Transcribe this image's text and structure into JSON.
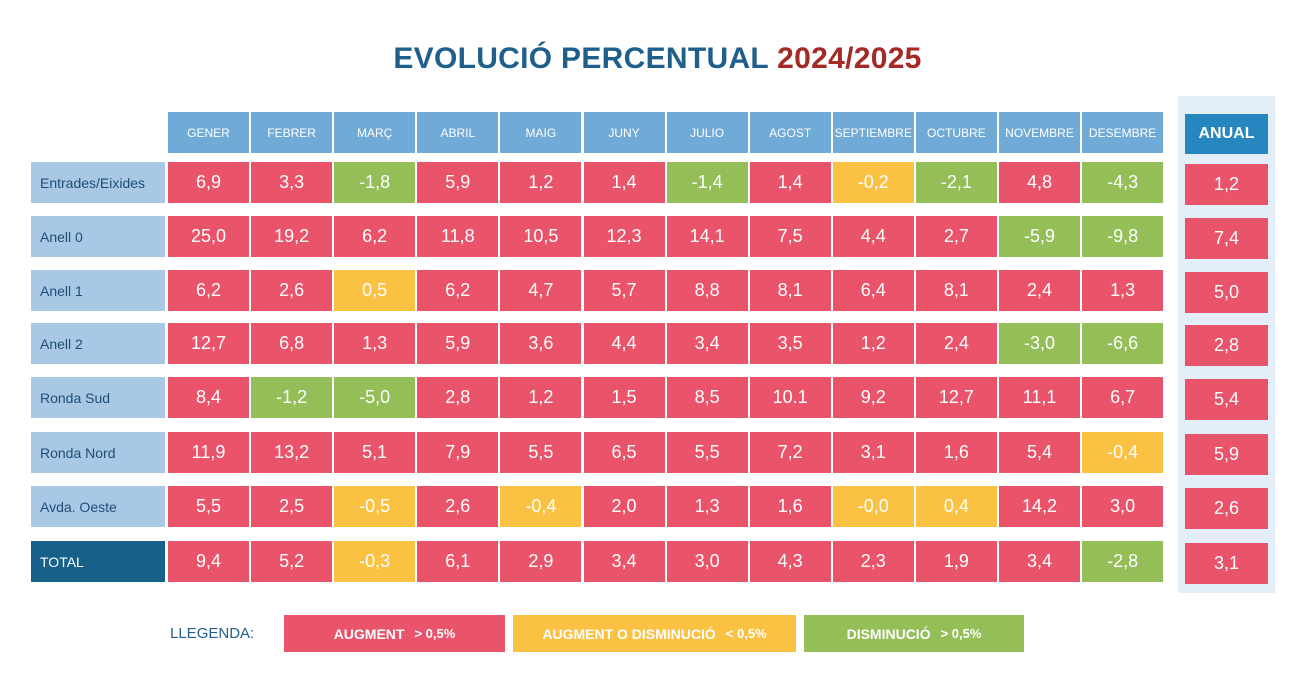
{
  "title": {
    "main": "EVOLUCIÓ PERCENTUAL",
    "year": "2024/2025"
  },
  "colors": {
    "up": "#EA546A",
    "flat": "#FBC143",
    "down": "#93BE58",
    "header": "#70AAD6",
    "row_label": "#A9C8E5",
    "total": "#17608A",
    "anual_header": "#2687BF"
  },
  "chart_data": {
    "type": "table",
    "title": "EVOLUCIÓ PERCENTUAL 2024/2025",
    "columns": [
      "GENER",
      "FEBRER",
      "MARÇ",
      "ABRIL",
      "MAIG",
      "JUNY",
      "JULIO",
      "AGOST",
      "SEPTIEMBRE",
      "OCTUBRE",
      "NOVEMBRE",
      "DESEMBRE"
    ],
    "annual_header": "ANUAL",
    "rows": [
      {
        "label": "Entrades/Eixides",
        "values": [
          "6,9",
          "3,3",
          "-1,8",
          "5,9",
          "1,2",
          "1,4",
          "-1,4",
          "1,4",
          "-0,2",
          "-2,1",
          "4,8",
          "-4,3"
        ],
        "status": [
          "up",
          "up",
          "down",
          "up",
          "up",
          "up",
          "down",
          "up",
          "flat",
          "down",
          "up",
          "down"
        ],
        "annual": "1,2",
        "annual_status": "up"
      },
      {
        "label": "Anell 0",
        "values": [
          "25,0",
          "19,2",
          "6,2",
          "11,8",
          "10,5",
          "12,3",
          "14,1",
          "7,5",
          "4,4",
          "2,7",
          "-5,9",
          "-9,8"
        ],
        "status": [
          "up",
          "up",
          "up",
          "up",
          "up",
          "up",
          "up",
          "up",
          "up",
          "up",
          "down",
          "down"
        ],
        "annual": "7,4",
        "annual_status": "up"
      },
      {
        "label": "Anell 1",
        "values": [
          "6,2",
          "2,6",
          "0,5",
          "6,2",
          "4,7",
          "5,7",
          "8,8",
          "8,1",
          "6,4",
          "8,1",
          "2,4",
          "1,3"
        ],
        "status": [
          "up",
          "up",
          "flat",
          "up",
          "up",
          "up",
          "up",
          "up",
          "up",
          "up",
          "up",
          "up"
        ],
        "annual": "5,0",
        "annual_status": "up"
      },
      {
        "label": "Anell 2",
        "values": [
          "12,7",
          "6,8",
          "1,3",
          "5,9",
          "3,6",
          "4,4",
          "3,4",
          "3,5",
          "1,2",
          "2,4",
          "-3,0",
          "-6,6"
        ],
        "status": [
          "up",
          "up",
          "up",
          "up",
          "up",
          "up",
          "up",
          "up",
          "up",
          "up",
          "down",
          "down"
        ],
        "annual": "2,8",
        "annual_status": "up"
      },
      {
        "label": "Ronda Sud",
        "values": [
          "8,4",
          "-1,2",
          "-5,0",
          "2,8",
          "1,2",
          "1,5",
          "8,5",
          "10.1",
          "9,2",
          "12,7",
          "11,1",
          "6,7"
        ],
        "status": [
          "up",
          "down",
          "down",
          "up",
          "up",
          "up",
          "up",
          "up",
          "up",
          "up",
          "up",
          "up"
        ],
        "annual": "5,4",
        "annual_status": "up"
      },
      {
        "label": "Ronda Nord",
        "values": [
          "11,9",
          "13,2",
          "5,1",
          "7,9",
          "5,5",
          "6,5",
          "5,5",
          "7,2",
          "3,1",
          "1,6",
          "5,4",
          "-0,4"
        ],
        "status": [
          "up",
          "up",
          "up",
          "up",
          "up",
          "up",
          "up",
          "up",
          "up",
          "up",
          "up",
          "flat"
        ],
        "annual": "5,9",
        "annual_status": "up"
      },
      {
        "label": "Avda. Oeste",
        "values": [
          "5,5",
          "2,5",
          "-0,5",
          "2,6",
          "-0,4",
          "2,0",
          "1,3",
          "1,6",
          "-0,0",
          "0,4",
          "14,2",
          "3,0"
        ],
        "status": [
          "up",
          "up",
          "flat",
          "up",
          "flat",
          "up",
          "up",
          "up",
          "flat",
          "flat",
          "up",
          "up"
        ],
        "annual": "2,6",
        "annual_status": "up"
      },
      {
        "label": "TOTAL",
        "values": [
          "9,4",
          "5,2",
          "-0,3",
          "6,1",
          "2,9",
          "3,4",
          "3,0",
          "4,3",
          "2,3",
          "1,9",
          "3,4",
          "-2,8"
        ],
        "status": [
          "up",
          "up",
          "flat",
          "up",
          "up",
          "up",
          "up",
          "up",
          "up",
          "up",
          "up",
          "down"
        ],
        "annual": "3,1",
        "annual_status": "up"
      }
    ]
  },
  "legend": {
    "label": "LLEGENDA:",
    "items": [
      {
        "text": "AUGMENT",
        "threshold": "> 0,5%",
        "status": "up"
      },
      {
        "text": "AUGMENT O DISMINUCIÓ",
        "threshold": "< 0,5%",
        "status": "flat"
      },
      {
        "text": "DISMINUCIÓ",
        "threshold": "> 0,5%",
        "status": "down"
      }
    ]
  }
}
